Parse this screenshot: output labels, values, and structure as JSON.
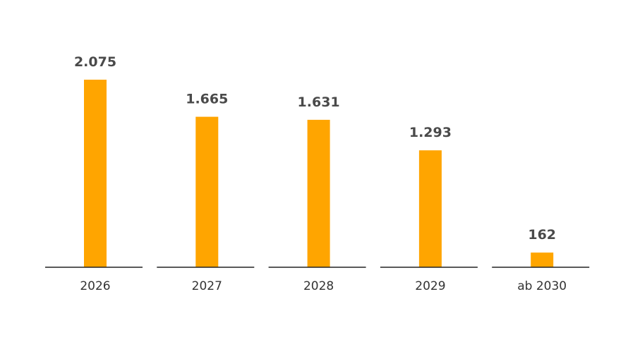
{
  "chart_data": {
    "type": "bar",
    "categories": [
      "2026",
      "2027",
      "2028",
      "2029",
      "ab 2030"
    ],
    "values": [
      2075,
      1665,
      1631,
      1293,
      162
    ],
    "value_labels": [
      "2.075",
      "1.665",
      "1.631",
      "1.293",
      "162"
    ],
    "title": "",
    "xlabel": "",
    "ylabel": "",
    "ylim": [
      0,
      2300
    ],
    "grid": false,
    "legend": "none",
    "colors": {
      "bar": "#FFA500",
      "axis": "#222222",
      "value_text": "#4a4a4a",
      "tick_text": "#333333"
    }
  }
}
